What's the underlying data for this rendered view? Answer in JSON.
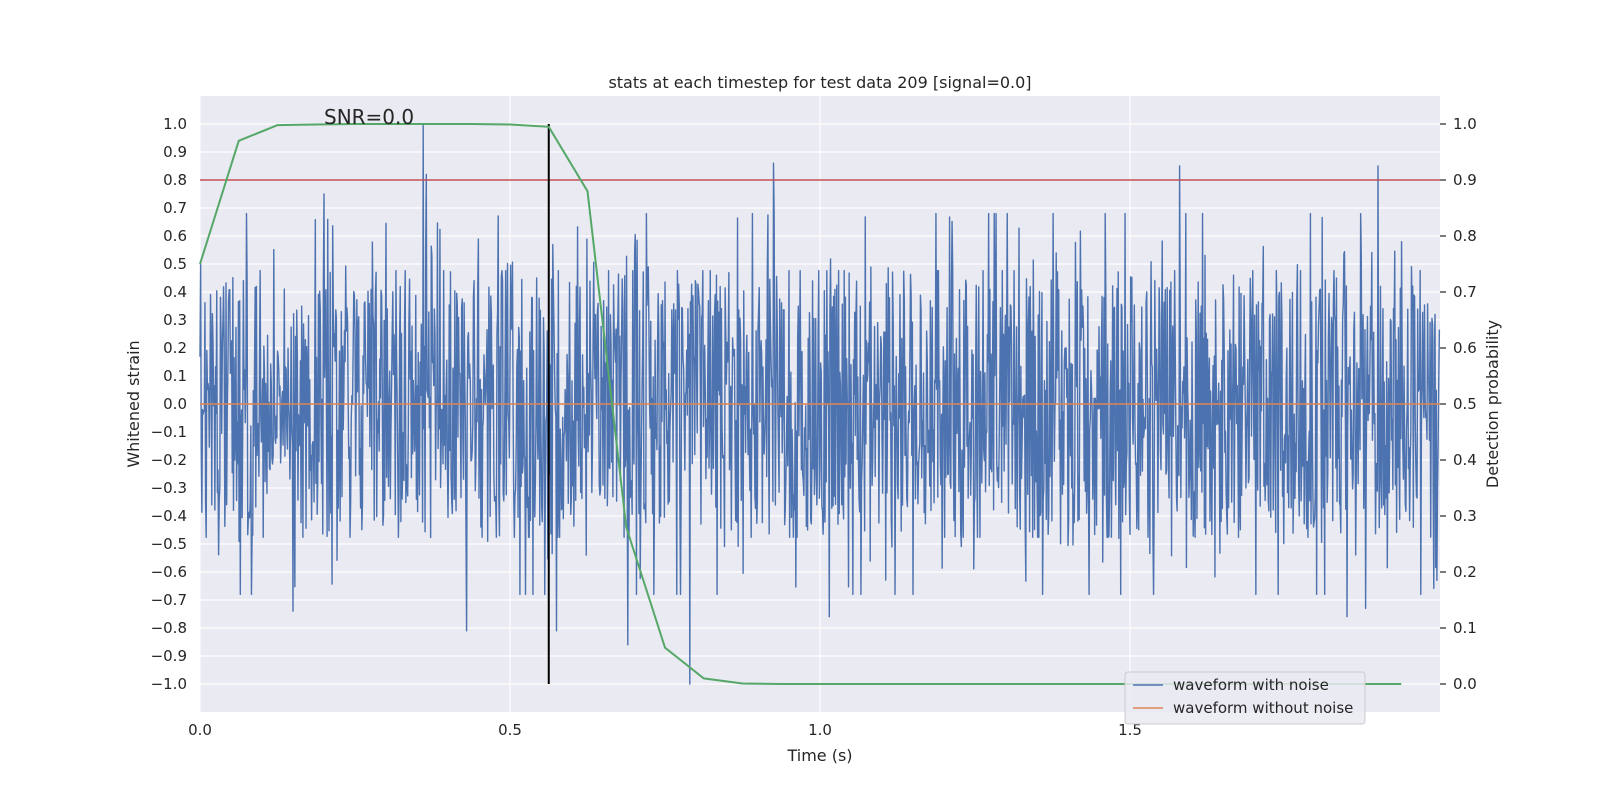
{
  "chart_data": {
    "type": "line",
    "title": "stats at each timestep for test data 209 [signal=0.0]",
    "xlabel": "Time (s)",
    "ylabel": "Whitened strain",
    "y2label": "Detection probability",
    "xlim": [
      0.0,
      2.0
    ],
    "ylim": [
      -1.1,
      1.1
    ],
    "y2lim": [
      -0.05,
      1.05
    ],
    "xticks": [
      "0.0",
      "0.5",
      "1.0",
      "1.5"
    ],
    "xtick_values": [
      0.0,
      0.5,
      1.0,
      1.5
    ],
    "yticks": [
      "1.0",
      "0.9",
      "0.8",
      "0.7",
      "0.6",
      "0.5",
      "0.4",
      "0.3",
      "0.2",
      "0.1",
      "0.0",
      "−0.1",
      "−0.2",
      "−0.3",
      "−0.4",
      "−0.5",
      "−0.6",
      "−0.7",
      "−0.8",
      "−0.9",
      "−1.0"
    ],
    "ytick_values": [
      1.0,
      0.9,
      0.8,
      0.7,
      0.6,
      0.5,
      0.4,
      0.3,
      0.2,
      0.1,
      0.0,
      -0.1,
      -0.2,
      -0.3,
      -0.4,
      -0.5,
      -0.6,
      -0.7,
      -0.8,
      -0.9,
      -1.0
    ],
    "y2ticks": [
      "1.0",
      "0.9",
      "0.8",
      "0.7",
      "0.6",
      "0.5",
      "0.4",
      "0.3",
      "0.2",
      "0.1",
      "0.0"
    ],
    "y2tick_values": [
      1.0,
      0.9,
      0.8,
      0.7,
      0.6,
      0.5,
      0.4,
      0.3,
      0.2,
      0.1,
      0.0
    ],
    "annotation": "SNR=0.0",
    "grid": true,
    "legend_position": "lower-right",
    "legend": [
      {
        "label": "waveform with noise",
        "color": "#4c72b0"
      },
      {
        "label": "waveform without noise",
        "color": "#dd8452"
      }
    ],
    "series": [
      {
        "name": "waveform with noise",
        "color": "#4c72b0",
        "axis": "left",
        "noise_band": [
          -0.45,
          0.45
        ],
        "sample_rate": 2048,
        "peaks": [
          {
            "x": 0.36,
            "y": 1.0
          },
          {
            "x": 0.365,
            "y": 0.82
          },
          {
            "x": 0.2,
            "y": 0.75
          },
          {
            "x": 0.925,
            "y": 0.86
          },
          {
            "x": 1.58,
            "y": 0.85
          },
          {
            "x": 1.9,
            "y": 0.85
          },
          {
            "x": 0.43,
            "y": -0.81
          },
          {
            "x": 0.575,
            "y": -0.81
          },
          {
            "x": 0.69,
            "y": -0.86
          },
          {
            "x": 0.79,
            "y": -1.0
          },
          {
            "x": 1.015,
            "y": -0.76
          },
          {
            "x": 1.85,
            "y": -0.76
          },
          {
            "x": 0.15,
            "y": -0.74
          },
          {
            "x": 1.88,
            "y": -0.73
          }
        ]
      },
      {
        "name": "waveform without noise",
        "color": "#dd8452",
        "axis": "left",
        "x": [
          0.0,
          2.0
        ],
        "y": [
          0.0,
          0.0
        ]
      },
      {
        "name": "detection probability",
        "color": "#55a868",
        "axis": "right",
        "x": [
          0.0,
          0.0625,
          0.125,
          0.1875,
          0.25,
          0.3125,
          0.375,
          0.4375,
          0.5,
          0.5625,
          0.625,
          0.6875,
          0.75,
          0.8125,
          0.875,
          0.9375,
          1.0,
          1.0625,
          1.125,
          1.1875,
          1.25,
          1.3125,
          1.375,
          1.4375,
          1.5,
          1.5625,
          1.625,
          1.6875,
          1.75,
          1.8125,
          1.875,
          1.9375
        ],
        "y": [
          0.75,
          0.97,
          0.998,
          0.999,
          1.0,
          1.0,
          1.0,
          1.0,
          0.999,
          0.995,
          0.88,
          0.28,
          0.065,
          0.01,
          0.001,
          0.0,
          0.0,
          0.0,
          0.0,
          0.0,
          0.0,
          0.0,
          0.0,
          0.0,
          0.0,
          0.0,
          0.0,
          0.0,
          0.0,
          0.0,
          0.0,
          0.0
        ]
      }
    ],
    "threshold": {
      "axis": "right",
      "y": 0.9,
      "color": "#c44e52"
    },
    "vline": {
      "x": 0.5625,
      "color": "#000000"
    }
  }
}
